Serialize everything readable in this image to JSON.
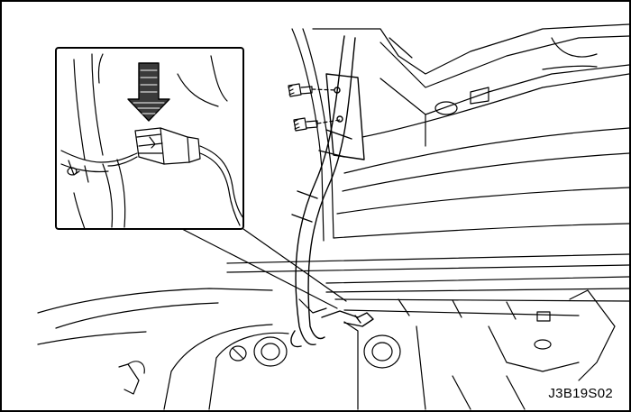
{
  "figure": {
    "code": "J3B19S02"
  },
  "colors": {
    "line": "#000000",
    "background": "#ffffff",
    "arrow_fill": "#3a3a3a"
  }
}
